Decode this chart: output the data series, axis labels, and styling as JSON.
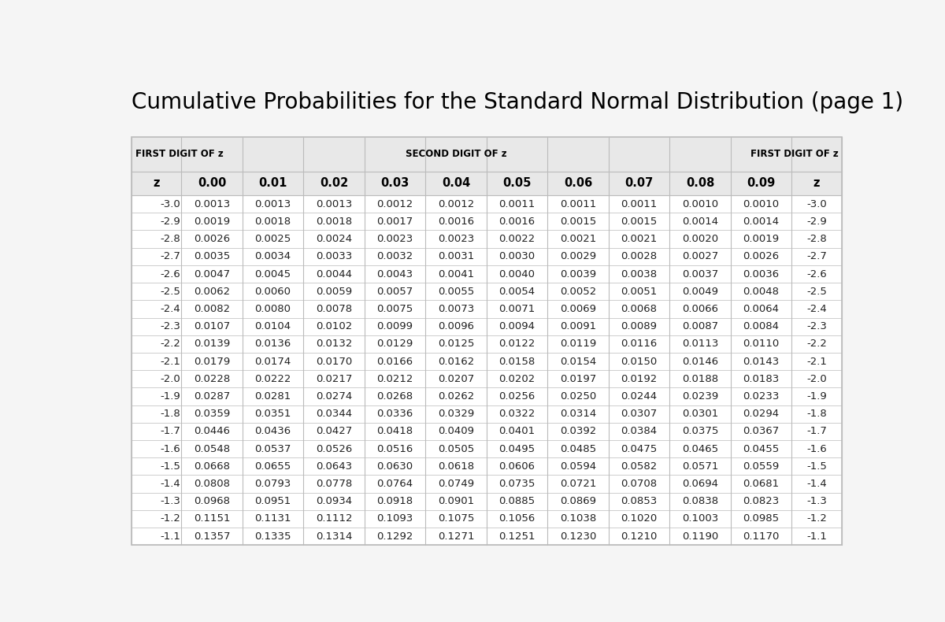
{
  "title": "Cumulative Probabilities for the Standard Normal Distribution (page 1)",
  "title_fontsize": 20,
  "bg_color": "#f5f5f5",
  "table_bg": "#ffffff",
  "table_header_bg": "#e8e8e8",
  "header_label_left": "FIRST DIGIT OF z",
  "header_label_center": "SECOND DIGIT OF z",
  "header_label_right": "FIRST DIGIT OF z",
  "col_headers": [
    "z",
    "0.00",
    "0.01",
    "0.02",
    "0.03",
    "0.04",
    "0.05",
    "0.06",
    "0.07",
    "0.08",
    "0.09",
    "z"
  ],
  "z_values": [
    "-3.0",
    "-2.9",
    "-2.8",
    "-2.7",
    "-2.6",
    "-2.5",
    "-2.4",
    "-2.3",
    "-2.2",
    "-2.1",
    "-2.0",
    "-1.9",
    "-1.8",
    "-1.7",
    "-1.6",
    "-1.5",
    "-1.4",
    "-1.3",
    "-1.2",
    "-1.1"
  ],
  "table_data": [
    [
      "0.0013",
      "0.0013",
      "0.0013",
      "0.0012",
      "0.0012",
      "0.0011",
      "0.0011",
      "0.0011",
      "0.0010",
      "0.0010"
    ],
    [
      "0.0019",
      "0.0018",
      "0.0018",
      "0.0017",
      "0.0016",
      "0.0016",
      "0.0015",
      "0.0015",
      "0.0014",
      "0.0014"
    ],
    [
      "0.0026",
      "0.0025",
      "0.0024",
      "0.0023",
      "0.0023",
      "0.0022",
      "0.0021",
      "0.0021",
      "0.0020",
      "0.0019"
    ],
    [
      "0.0035",
      "0.0034",
      "0.0033",
      "0.0032",
      "0.0031",
      "0.0030",
      "0.0029",
      "0.0028",
      "0.0027",
      "0.0026"
    ],
    [
      "0.0047",
      "0.0045",
      "0.0044",
      "0.0043",
      "0.0041",
      "0.0040",
      "0.0039",
      "0.0038",
      "0.0037",
      "0.0036"
    ],
    [
      "0.0062",
      "0.0060",
      "0.0059",
      "0.0057",
      "0.0055",
      "0.0054",
      "0.0052",
      "0.0051",
      "0.0049",
      "0.0048"
    ],
    [
      "0.0082",
      "0.0080",
      "0.0078",
      "0.0075",
      "0.0073",
      "0.0071",
      "0.0069",
      "0.0068",
      "0.0066",
      "0.0064"
    ],
    [
      "0.0107",
      "0.0104",
      "0.0102",
      "0.0099",
      "0.0096",
      "0.0094",
      "0.0091",
      "0.0089",
      "0.0087",
      "0.0084"
    ],
    [
      "0.0139",
      "0.0136",
      "0.0132",
      "0.0129",
      "0.0125",
      "0.0122",
      "0.0119",
      "0.0116",
      "0.0113",
      "0.0110"
    ],
    [
      "0.0179",
      "0.0174",
      "0.0170",
      "0.0166",
      "0.0162",
      "0.0158",
      "0.0154",
      "0.0150",
      "0.0146",
      "0.0143"
    ],
    [
      "0.0228",
      "0.0222",
      "0.0217",
      "0.0212",
      "0.0207",
      "0.0202",
      "0.0197",
      "0.0192",
      "0.0188",
      "0.0183"
    ],
    [
      "0.0287",
      "0.0281",
      "0.0274",
      "0.0268",
      "0.0262",
      "0.0256",
      "0.0250",
      "0.0244",
      "0.0239",
      "0.0233"
    ],
    [
      "0.0359",
      "0.0351",
      "0.0344",
      "0.0336",
      "0.0329",
      "0.0322",
      "0.0314",
      "0.0307",
      "0.0301",
      "0.0294"
    ],
    [
      "0.0446",
      "0.0436",
      "0.0427",
      "0.0418",
      "0.0409",
      "0.0401",
      "0.0392",
      "0.0384",
      "0.0375",
      "0.0367"
    ],
    [
      "0.0548",
      "0.0537",
      "0.0526",
      "0.0516",
      "0.0505",
      "0.0495",
      "0.0485",
      "0.0475",
      "0.0465",
      "0.0455"
    ],
    [
      "0.0668",
      "0.0655",
      "0.0643",
      "0.0630",
      "0.0618",
      "0.0606",
      "0.0594",
      "0.0582",
      "0.0571",
      "0.0559"
    ],
    [
      "0.0808",
      "0.0793",
      "0.0778",
      "0.0764",
      "0.0749",
      "0.0735",
      "0.0721",
      "0.0708",
      "0.0694",
      "0.0681"
    ],
    [
      "0.0968",
      "0.0951",
      "0.0934",
      "0.0918",
      "0.0901",
      "0.0885",
      "0.0869",
      "0.0853",
      "0.0838",
      "0.0823"
    ],
    [
      "0.1151",
      "0.1131",
      "0.1112",
      "0.1093",
      "0.1075",
      "0.1056",
      "0.1038",
      "0.1020",
      "0.1003",
      "0.0985"
    ],
    [
      "0.1357",
      "0.1335",
      "0.1314",
      "0.1292",
      "0.1271",
      "0.1251",
      "0.1230",
      "0.1210",
      "0.1190",
      "0.1170"
    ]
  ],
  "font_color": "#222222",
  "header_font_color": "#000000",
  "border_color": "#bbbbbb",
  "data_font_size": 9.5,
  "header_font_size": 8.5,
  "col_header_font_size": 10.5
}
